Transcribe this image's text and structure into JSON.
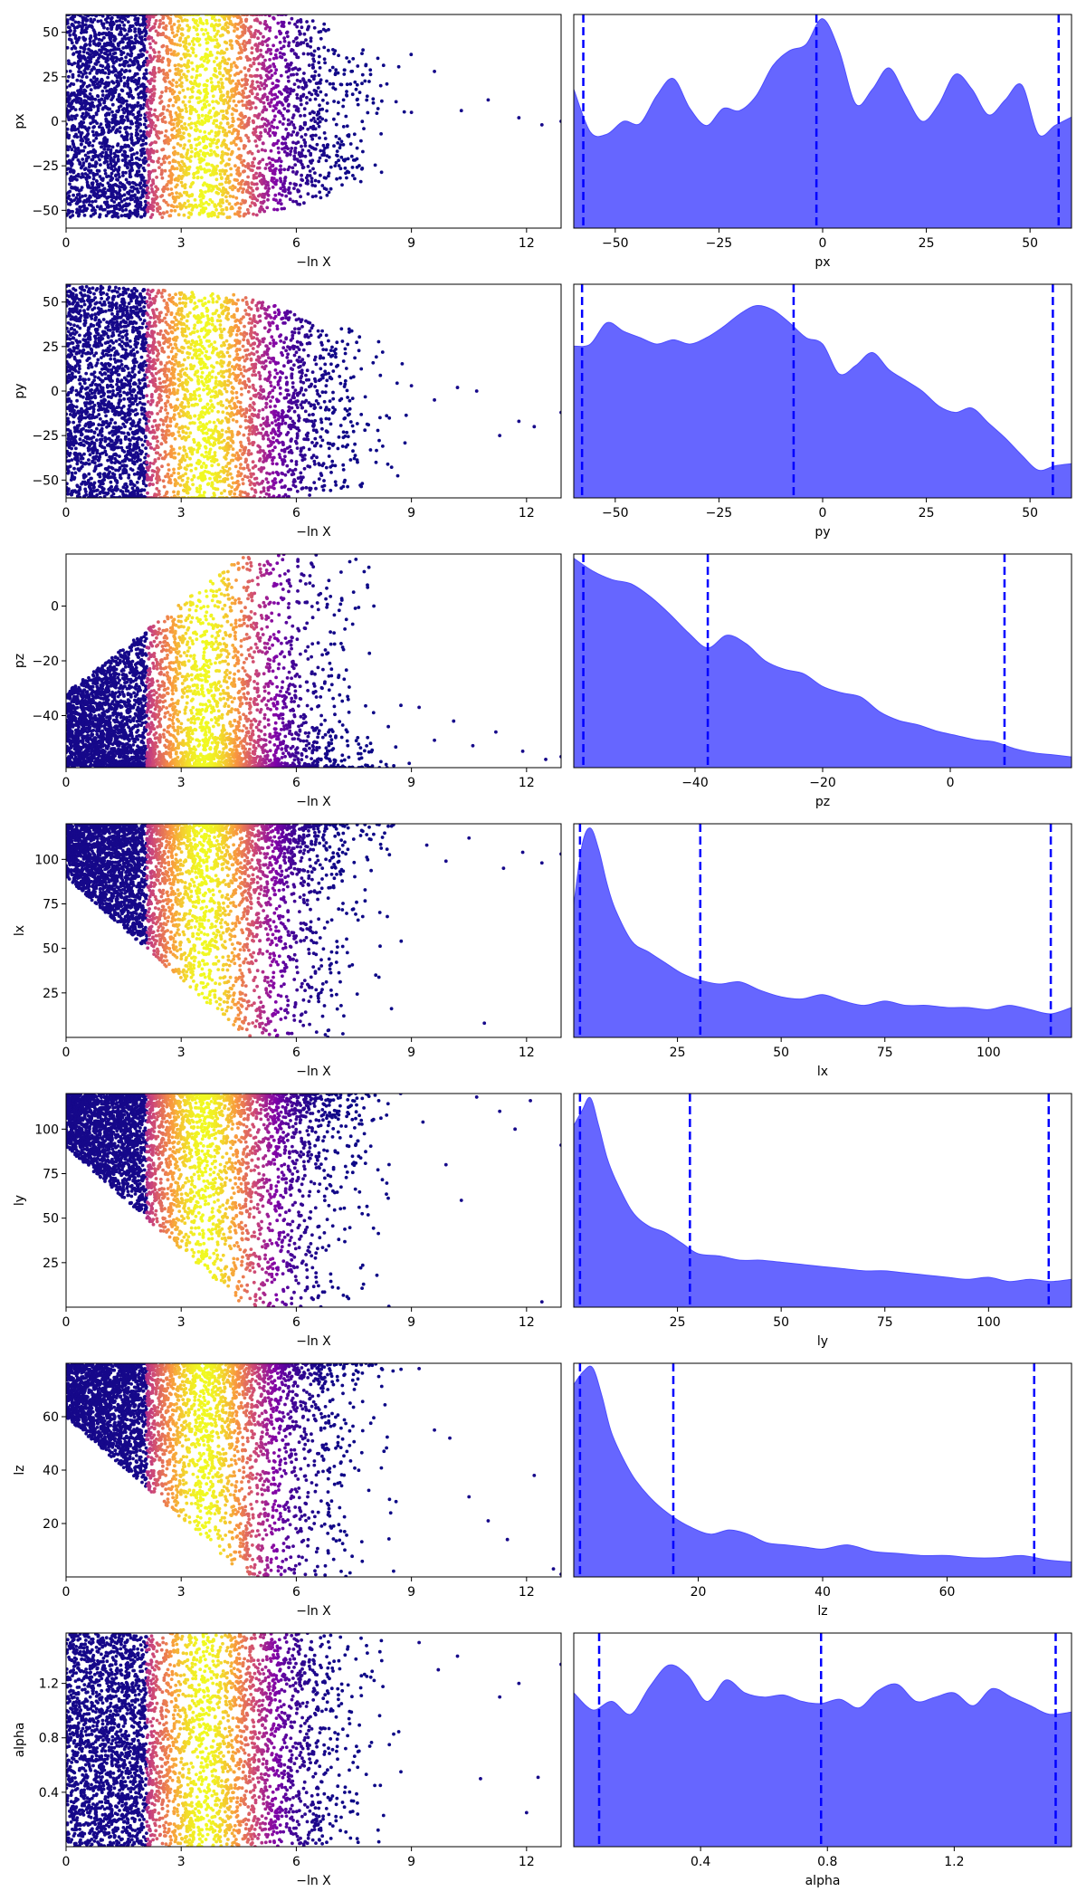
{
  "chart_data": [
    {
      "type": "scatter",
      "xlabel": "−ln X",
      "ylabel": "px",
      "xlim": [
        0,
        12.9
      ],
      "ylim": [
        -60,
        60
      ],
      "xticks": [
        "0",
        "3",
        "6",
        "9",
        "12"
      ],
      "yticks": [
        "−50",
        "−25",
        "0",
        "25",
        "50"
      ],
      "param": "px",
      "tail": [
        [
          7.1,
          37
        ],
        [
          7.6,
          31
        ],
        [
          8.2,
          20
        ],
        [
          8.6,
          11
        ],
        [
          9.0,
          5
        ],
        [
          9.6,
          28
        ],
        [
          10.3,
          6
        ],
        [
          11.0,
          12
        ],
        [
          11.8,
          2
        ],
        [
          12.4,
          -2
        ],
        [
          12.9,
          0
        ]
      ]
    },
    {
      "type": "area",
      "xlabel": "px",
      "ylabel": "",
      "xlim": [
        -60,
        60
      ],
      "xticks": [
        "−50",
        "−25",
        "0",
        "25",
        "50"
      ],
      "quantiles": [
        -57.7,
        -1.5,
        56.9
      ],
      "x": [
        -60,
        -56,
        -52,
        -48,
        -44,
        -40,
        -36,
        -32,
        -28,
        -24,
        -20,
        -16,
        -12,
        -8,
        -4,
        0,
        4,
        8,
        12,
        16,
        20,
        24,
        28,
        32,
        36,
        40,
        44,
        48,
        52,
        56,
        60
      ],
      "density": [
        0.65,
        0.45,
        0.44,
        0.5,
        0.49,
        0.62,
        0.7,
        0.56,
        0.48,
        0.56,
        0.55,
        0.62,
        0.76,
        0.83,
        0.86,
        0.98,
        0.83,
        0.58,
        0.65,
        0.75,
        0.62,
        0.5,
        0.58,
        0.72,
        0.65,
        0.53,
        0.6,
        0.67,
        0.44,
        0.48,
        0.52
      ]
    },
    {
      "type": "scatter",
      "xlabel": "−ln X",
      "ylabel": "py",
      "xlim": [
        0,
        12.9
      ],
      "ylim": [
        -60,
        60
      ],
      "xticks": [
        "0",
        "3",
        "6",
        "9",
        "12"
      ],
      "yticks": [
        "−50",
        "−25",
        "0",
        "25",
        "50"
      ],
      "param": "py",
      "tail": [
        [
          9.0,
          3
        ],
        [
          9.6,
          -5
        ],
        [
          10.2,
          2
        ],
        [
          10.7,
          0
        ],
        [
          11.3,
          -25
        ],
        [
          11.8,
          -17
        ],
        [
          12.2,
          -20
        ],
        [
          12.9,
          -12
        ]
      ]
    },
    {
      "type": "area",
      "xlabel": "py",
      "ylabel": "",
      "xlim": [
        -60,
        60
      ],
      "xticks": [
        "−50",
        "−25",
        "0",
        "25",
        "50"
      ],
      "quantiles": [
        -58.0,
        -7.0,
        55.5
      ],
      "x": [
        -60,
        -56,
        -52,
        -48,
        -44,
        -40,
        -36,
        -32,
        -28,
        -24,
        -20,
        -16,
        -12,
        -8,
        -4,
        0,
        4,
        8,
        12,
        16,
        20,
        24,
        28,
        32,
        36,
        40,
        44,
        48,
        52,
        56,
        60
      ],
      "density": [
        0.71,
        0.72,
        0.82,
        0.78,
        0.75,
        0.72,
        0.74,
        0.72,
        0.75,
        0.8,
        0.86,
        0.9,
        0.88,
        0.82,
        0.75,
        0.72,
        0.58,
        0.62,
        0.68,
        0.6,
        0.55,
        0.5,
        0.43,
        0.4,
        0.42,
        0.35,
        0.28,
        0.2,
        0.13,
        0.15,
        0.16
      ]
    },
    {
      "type": "scatter",
      "xlabel": "−ln X",
      "ylabel": "pz",
      "xlim": [
        0,
        12.9
      ],
      "ylim": [
        -59,
        19
      ],
      "xticks": [
        "0",
        "3",
        "6",
        "9",
        "12"
      ],
      "yticks": [
        "−40",
        "−20",
        "0"
      ],
      "param": "pz",
      "tail": [
        [
          9.2,
          -37
        ],
        [
          9.6,
          -49
        ],
        [
          10.1,
          -42
        ],
        [
          10.6,
          -51
        ],
        [
          11.2,
          -46
        ],
        [
          11.9,
          -53
        ],
        [
          12.5,
          -56
        ],
        [
          12.9,
          -55
        ]
      ]
    },
    {
      "type": "area",
      "xlabel": "pz",
      "ylabel": "",
      "xlim": [
        -59,
        19
      ],
      "xticks": [
        "−40",
        "−20",
        "0"
      ],
      "quantiles": [
        -57.5,
        -38.0,
        8.5
      ],
      "x": [
        -59,
        -56,
        -53,
        -50,
        -47,
        -44,
        -41,
        -38,
        -35,
        -32,
        -29,
        -26,
        -23,
        -20,
        -17,
        -14,
        -11,
        -8,
        -5,
        -2,
        1,
        4,
        7,
        10,
        13,
        16,
        19
      ],
      "density": [
        0.98,
        0.92,
        0.88,
        0.86,
        0.8,
        0.72,
        0.63,
        0.56,
        0.62,
        0.58,
        0.5,
        0.46,
        0.44,
        0.38,
        0.35,
        0.33,
        0.26,
        0.22,
        0.2,
        0.17,
        0.15,
        0.13,
        0.12,
        0.09,
        0.07,
        0.06,
        0.05
      ]
    },
    {
      "type": "scatter",
      "xlabel": "−ln X",
      "ylabel": "lx",
      "xlim": [
        0,
        12.9
      ],
      "ylim": [
        0,
        120
      ],
      "xticks": [
        "0",
        "3",
        "6",
        "9",
        "12"
      ],
      "yticks": [
        "25",
        "50",
        "75",
        "100"
      ],
      "param": "lx",
      "tail": [
        [
          9.4,
          108
        ],
        [
          9.9,
          99
        ],
        [
          10.5,
          112
        ],
        [
          10.9,
          8
        ],
        [
          11.4,
          95
        ],
        [
          11.9,
          104
        ],
        [
          12.4,
          98
        ],
        [
          12.9,
          103
        ]
      ]
    },
    {
      "type": "area",
      "xlabel": "lx",
      "ylabel": "",
      "xlim": [
        0,
        120
      ],
      "xticks": [
        "25",
        "50",
        "75",
        "100"
      ],
      "quantiles": [
        1.5,
        30.5,
        115.0
      ],
      "x": [
        0,
        2,
        4,
        6,
        8,
        10,
        14,
        18,
        22,
        26,
        30,
        35,
        40,
        45,
        50,
        55,
        60,
        65,
        70,
        75,
        80,
        85,
        90,
        95,
        100,
        105,
        110,
        115,
        120
      ],
      "density": [
        0.62,
        0.9,
        0.98,
        0.88,
        0.72,
        0.6,
        0.45,
        0.4,
        0.35,
        0.3,
        0.27,
        0.25,
        0.26,
        0.22,
        0.19,
        0.18,
        0.2,
        0.17,
        0.15,
        0.17,
        0.15,
        0.15,
        0.14,
        0.14,
        0.13,
        0.15,
        0.13,
        0.11,
        0.14
      ]
    },
    {
      "type": "scatter",
      "xlabel": "−ln X",
      "ylabel": "ly",
      "xlim": [
        0,
        12.9
      ],
      "ylim": [
        0,
        120
      ],
      "xticks": [
        "0",
        "3",
        "6",
        "9",
        "12"
      ],
      "yticks": [
        "25",
        "50",
        "75",
        "100"
      ],
      "param": "ly",
      "tail": [
        [
          9.3,
          104
        ],
        [
          9.9,
          80
        ],
        [
          10.3,
          60
        ],
        [
          10.7,
          118
        ],
        [
          11.3,
          110
        ],
        [
          11.7,
          100
        ],
        [
          12.1,
          116
        ],
        [
          12.4,
          3
        ],
        [
          12.9,
          91
        ]
      ]
    },
    {
      "type": "area",
      "xlabel": "ly",
      "ylabel": "",
      "xlim": [
        0,
        120
      ],
      "xticks": [
        "25",
        "50",
        "75",
        "100"
      ],
      "quantiles": [
        1.5,
        28.0,
        114.5
      ],
      "x": [
        0,
        2,
        4,
        6,
        8,
        10,
        14,
        18,
        22,
        26,
        30,
        35,
        40,
        45,
        50,
        55,
        60,
        65,
        70,
        75,
        80,
        85,
        90,
        95,
        100,
        105,
        110,
        115,
        120
      ],
      "density": [
        0.85,
        0.92,
        0.98,
        0.85,
        0.7,
        0.6,
        0.45,
        0.38,
        0.35,
        0.3,
        0.25,
        0.24,
        0.22,
        0.22,
        0.21,
        0.2,
        0.19,
        0.18,
        0.17,
        0.17,
        0.16,
        0.15,
        0.14,
        0.13,
        0.14,
        0.12,
        0.13,
        0.12,
        0.13
      ]
    },
    {
      "type": "scatter",
      "xlabel": "−ln X",
      "ylabel": "lz",
      "xlim": [
        0,
        12.9
      ],
      "ylim": [
        0,
        80
      ],
      "xticks": [
        "0",
        "3",
        "6",
        "9",
        "12"
      ],
      "yticks": [
        "20",
        "40",
        "60"
      ],
      "param": "lz",
      "tail": [
        [
          9.2,
          78
        ],
        [
          9.6,
          55
        ],
        [
          10.0,
          52
        ],
        [
          10.5,
          30
        ],
        [
          11.0,
          21
        ],
        [
          11.5,
          14
        ],
        [
          12.2,
          38
        ],
        [
          12.7,
          3
        ],
        [
          12.9,
          1
        ]
      ]
    },
    {
      "type": "area",
      "xlabel": "lz",
      "ylabel": "",
      "xlim": [
        0,
        80
      ],
      "xticks": [
        "20",
        "40",
        "60"
      ],
      "quantiles": [
        1.0,
        16.0,
        74.0
      ],
      "x": [
        0,
        1.5,
        3,
        4.5,
        6,
        8,
        10,
        13,
        16,
        19,
        22,
        25,
        28,
        31,
        34,
        37,
        40,
        44,
        48,
        52,
        56,
        60,
        64,
        68,
        72,
        76,
        80
      ],
      "density": [
        0.9,
        0.96,
        0.98,
        0.85,
        0.68,
        0.55,
        0.45,
        0.35,
        0.28,
        0.23,
        0.2,
        0.22,
        0.2,
        0.16,
        0.15,
        0.14,
        0.13,
        0.15,
        0.12,
        0.11,
        0.1,
        0.1,
        0.09,
        0.09,
        0.1,
        0.08,
        0.07
      ]
    },
    {
      "type": "scatter",
      "xlabel": "−ln X",
      "ylabel": "alpha",
      "xlim": [
        0,
        12.9
      ],
      "ylim": [
        0,
        1.57
      ],
      "xticks": [
        "0",
        "3",
        "6",
        "9",
        "12"
      ],
      "yticks": [
        "0.4",
        "0.8",
        "1.2"
      ],
      "param": "alpha",
      "tail": [
        [
          9.2,
          1.5
        ],
        [
          9.7,
          1.3
        ],
        [
          10.2,
          1.4
        ],
        [
          10.8,
          0.5
        ],
        [
          11.3,
          1.1
        ],
        [
          11.8,
          1.2
        ],
        [
          12.0,
          0.25
        ],
        [
          12.3,
          0.51
        ],
        [
          12.9,
          1.34
        ]
      ]
    },
    {
      "type": "area",
      "xlabel": "alpha",
      "ylabel": "",
      "xlim": [
        0,
        1.57
      ],
      "xticks": [
        "0.4",
        "0.8",
        "1.2"
      ],
      "quantiles": [
        0.08,
        0.78,
        1.52
      ],
      "x": [
        0,
        0.06,
        0.12,
        0.18,
        0.24,
        0.3,
        0.36,
        0.42,
        0.48,
        0.54,
        0.6,
        0.66,
        0.72,
        0.78,
        0.84,
        0.9,
        0.96,
        1.02,
        1.08,
        1.14,
        1.2,
        1.26,
        1.32,
        1.38,
        1.44,
        1.5,
        1.57
      ],
      "density": [
        0.72,
        0.64,
        0.68,
        0.62,
        0.75,
        0.85,
        0.8,
        0.68,
        0.78,
        0.72,
        0.7,
        0.71,
        0.68,
        0.67,
        0.69,
        0.65,
        0.73,
        0.76,
        0.68,
        0.7,
        0.72,
        0.66,
        0.74,
        0.7,
        0.66,
        0.62,
        0.63
      ]
    }
  ]
}
